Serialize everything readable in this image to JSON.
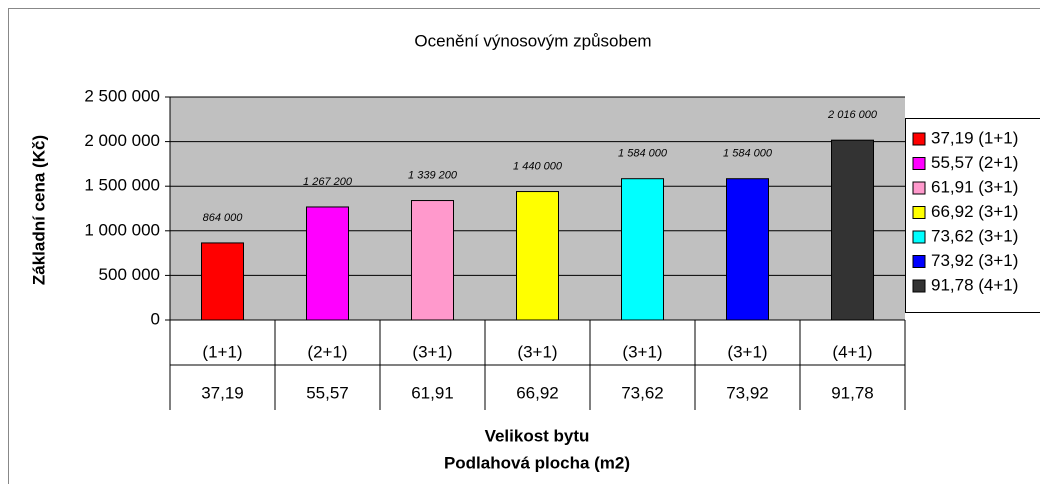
{
  "chart_data": {
    "type": "bar",
    "title": "Ocenění výnosovým způsobem",
    "y_label": "Základní cena (Kč)",
    "x_label": [
      "Velikost bytu",
      "Podlahová plocha (m2)"
    ],
    "categories": [
      "(1+1)",
      "(2+1)",
      "(3+1)",
      "(3+1)",
      "(3+1)",
      "(3+1)",
      "(4+1)"
    ],
    "subcategories": [
      "37,19",
      "55,57",
      "61,91",
      "66,92",
      "73,62",
      "73,92",
      "91,78"
    ],
    "legend": [
      "37,19 (1+1)",
      "55,57 (2+1)",
      "61,91 (3+1)",
      "66,92 (3+1)",
      "73,62 (3+1)",
      "73,92 (3+1)",
      "91,78 (4+1)"
    ],
    "colors": [
      "#ff0000",
      "#ff00ff",
      "#ff99cc",
      "#ffff00",
      "#00ffff",
      "#0000ff",
      "#333333"
    ],
    "values": [
      864000,
      1267200,
      1339200,
      1440000,
      1584000,
      1584000,
      2016000
    ],
    "value_labels": [
      "864 000",
      "1 267 200",
      "1 339 200",
      "1 440 000",
      "1 584 000",
      "1 584 000",
      "2 016 000"
    ],
    "ylim": [
      0,
      2500000
    ],
    "yticks": [
      0,
      {
        "value": 500000,
        "label": "500 000"
      },
      {
        "value": 1000000,
        "label": "1 000 000"
      },
      {
        "value": 1500000,
        "label": "1 500 000"
      },
      {
        "value": 2000000,
        "label": "2 000 000"
      },
      {
        "value": 2500000,
        "label": "2 500 000"
      }
    ],
    "grid": true
  }
}
